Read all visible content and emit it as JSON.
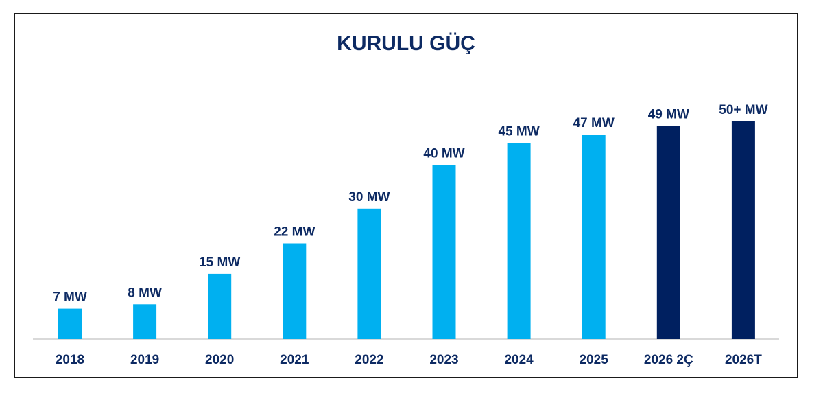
{
  "chart_data": {
    "type": "bar",
    "title": "KURULU GÜÇ",
    "xlabel": "",
    "ylabel": "",
    "categories": [
      "2018",
      "2019",
      "2020",
      "2021",
      "2022",
      "2023",
      "2024",
      "2025",
      "2026 2Ç",
      "2026T"
    ],
    "values": [
      7,
      8,
      15,
      22,
      30,
      40,
      45,
      47,
      49,
      50
    ],
    "data_labels": [
      "7 MW",
      "8 MW",
      "15 MW",
      "22 MW",
      "30 MW",
      "40 MW",
      "45 MW",
      "47 MW",
      "49 MW",
      "50+ MW"
    ],
    "ylim": [
      0,
      50
    ],
    "unit": "MW",
    "grid": false,
    "legend": "none",
    "colors": {
      "actual": "#00b0f0",
      "highlight": "#002060",
      "text": "#0d2a63",
      "axis": "#d9d9d9"
    },
    "highlighted_categories": [
      "2026 2Ç",
      "2026T"
    ]
  }
}
